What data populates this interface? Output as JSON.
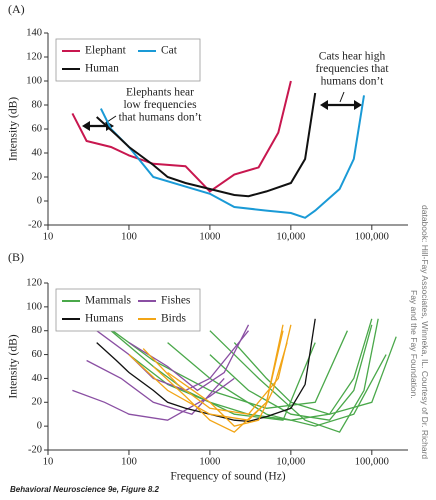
{
  "chart_data": [
    {
      "type": "line",
      "panel_label": "(A)",
      "y_label": "Intensity (dB)",
      "xscale": "log",
      "legend": "upper left",
      "xlim": [
        10,
        280000
      ],
      "ylim": [
        -20,
        140
      ],
      "xticks": [
        10,
        100,
        1000,
        {
          "value": 10000,
          "label": "10,000"
        },
        {
          "value": 100000,
          "label": "100,000"
        }
      ],
      "yticks": [
        -20,
        0,
        20,
        40,
        60,
        80,
        100,
        120,
        140
      ],
      "annotations": [
        [
          "Elephants hear",
          "low frequencies",
          "that humans don’t"
        ],
        [
          "Cats hear high",
          "frequencies that",
          "humans don’t"
        ]
      ],
      "series": [
        {
          "name": "Elephant",
          "color": "#c8174f",
          "x": [
            20,
            30,
            60,
            100,
            200,
            500,
            1000,
            2000,
            4000,
            7000,
            10000
          ],
          "values": [
            73,
            50,
            45,
            38,
            31,
            29,
            8,
            22,
            28,
            57,
            100
          ]
        },
        {
          "name": "Cat",
          "color": "#1a9ad6",
          "x": [
            45,
            60,
            100,
            200,
            500,
            1000,
            2000,
            5000,
            10000,
            15000,
            20000,
            40000,
            60000,
            80000
          ],
          "values": [
            77,
            60,
            45,
            20,
            12,
            6,
            -5,
            -8,
            -10,
            -14,
            -8,
            10,
            35,
            88
          ]
        },
        {
          "name": "Human",
          "color": "#111111",
          "x": [
            40,
            70,
            100,
            200,
            300,
            500,
            1000,
            2000,
            3000,
            5000,
            10000,
            15000,
            20000
          ],
          "values": [
            70,
            55,
            45,
            30,
            20,
            15,
            10,
            5,
            4,
            8,
            15,
            35,
            90
          ]
        }
      ]
    },
    {
      "type": "line",
      "panel_label": "(B)",
      "y_label": "Intensity (dB)",
      "x_label": "Frequency of sound (Hz)",
      "xscale": "log",
      "legend": "upper left",
      "xlim": [
        10,
        280000
      ],
      "ylim": [
        -20,
        120
      ],
      "xticks": [
        10,
        100,
        1000,
        {
          "value": 10000,
          "label": "10,000"
        },
        {
          "value": 100000,
          "label": "100,000"
        }
      ],
      "yticks": [
        -20,
        0,
        20,
        40,
        60,
        80,
        100,
        120
      ],
      "series": [
        {
          "name": "Mammals",
          "color": "#4aa84a",
          "curves": [
            {
              "x": [
                100,
                300,
                1000,
                3000,
                10000,
                30000,
                60000,
                100000
              ],
              "values": [
                60,
                35,
                20,
                10,
                5,
                10,
                40,
                90
              ]
            },
            {
              "x": [
                1000,
                3000,
                10000,
                30000,
                60000,
                100000
              ],
              "values": [
                60,
                30,
                10,
                5,
                30,
                85
              ]
            },
            {
              "x": [
                50,
                200,
                1000,
                5000,
                20000,
                50000
              ],
              "values": [
                85,
                55,
                30,
                15,
                20,
                80
              ]
            },
            {
              "x": [
                300,
                1000,
                5000,
                20000,
                60000,
                150000
              ],
              "values": [
                70,
                40,
                10,
                0,
                10,
                60
              ]
            },
            {
              "x": [
                2000,
                5000,
                10000,
                30000,
                100000,
                200000
              ],
              "values": [
                70,
                40,
                20,
                10,
                20,
                75
              ]
            },
            {
              "x": [
                60,
                200,
                500,
                2000,
                8000,
                20000
              ],
              "values": [
                80,
                50,
                30,
                10,
                5,
                70
              ]
            },
            {
              "x": [
                1000,
                4000,
                15000,
                40000,
                80000,
                120000
              ],
              "values": [
                80,
                40,
                5,
                -5,
                30,
                90
              ]
            }
          ]
        },
        {
          "name": "Fishes",
          "color": "#8a4fa3",
          "curves": [
            {
              "x": [
                20,
                50,
                100,
                300,
                1000,
                2000
              ],
              "values": [
                30,
                20,
                10,
                5,
                25,
                40
              ]
            },
            {
              "x": [
                40,
                100,
                200,
                500,
                1000,
                3000
              ],
              "values": [
                80,
                60,
                40,
                30,
                40,
                80
              ]
            },
            {
              "x": [
                30,
                80,
                200,
                600,
                1500
              ],
              "values": [
                55,
                40,
                20,
                10,
                40
              ]
            },
            {
              "x": [
                100,
                300,
                700,
                1500,
                3000
              ],
              "values": [
                70,
                50,
                30,
                45,
                85
              ]
            }
          ]
        },
        {
          "name": "Humans",
          "color": "#111111",
          "curves": [
            {
              "x": [
                40,
                70,
                100,
                200,
                300,
                500,
                1000,
                2000,
                3000,
                5000,
                10000,
                15000,
                20000
              ],
              "values": [
                70,
                55,
                45,
                30,
                20,
                15,
                10,
                5,
                4,
                8,
                15,
                35,
                90
              ]
            }
          ]
        },
        {
          "name": "Birds",
          "color": "#f2a516",
          "curves": [
            {
              "x": [
                100,
                300,
                1000,
                3000,
                5000,
                8000
              ],
              "values": [
                60,
                30,
                10,
                5,
                20,
                85
              ]
            },
            {
              "x": [
                200,
                500,
                1000,
                2000,
                5000,
                8000
              ],
              "values": [
                50,
                25,
                5,
                -5,
                20,
                80
              ]
            },
            {
              "x": [
                300,
                1000,
                2000,
                4000,
                6000,
                9000
              ],
              "values": [
                45,
                20,
                0,
                5,
                30,
                70
              ]
            },
            {
              "x": [
                150,
                400,
                1000,
                3000,
                7000,
                10000
              ],
              "values": [
                65,
                35,
                15,
                10,
                40,
                85
              ]
            }
          ]
        }
      ]
    }
  ],
  "credit": [
    "databook: Hill-Fay Associates, Winneka, IL. Courtesy of Dr. Richard",
    "Fay and the Fay Foundation."
  ],
  "footer": "Behavioral Neuroscience 9e, Figure 8.2"
}
